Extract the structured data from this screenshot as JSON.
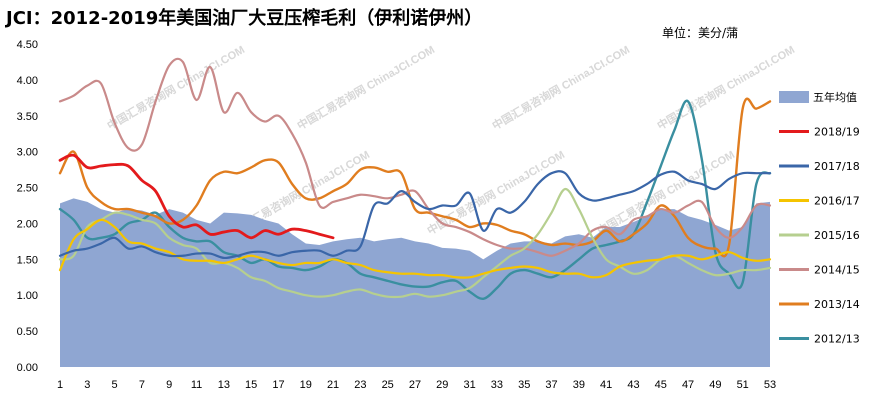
{
  "chart_data": {
    "type": "line",
    "title": "JCI：2012-2019年美国油厂大豆压榨毛利（伊利诺伊州）",
    "unit": "单位：美分/蒲",
    "watermark": "中国汇易咨询网  ChinaJCI.COM",
    "xlabel": "",
    "ylabel": "",
    "xlim": [
      1,
      53
    ],
    "ylim": [
      0,
      4.5
    ],
    "yticks": [
      "0.00",
      "0.50",
      "1.00",
      "1.50",
      "2.00",
      "2.50",
      "3.00",
      "3.50",
      "4.00",
      "4.50"
    ],
    "xticks": [
      "1",
      "3",
      "5",
      "7",
      "9",
      "11",
      "13",
      "15",
      "17",
      "19",
      "21",
      "23",
      "25",
      "27",
      "29",
      "31",
      "33",
      "35",
      "37",
      "39",
      "41",
      "43",
      "45",
      "47",
      "49",
      "51",
      "53"
    ],
    "legend_position": "right",
    "area": {
      "name": "五年均值",
      "color": "#8fa6d2",
      "x": [
        1,
        2,
        3,
        4,
        5,
        6,
        7,
        8,
        9,
        10,
        11,
        12,
        13,
        14,
        15,
        16,
        17,
        18,
        19,
        20,
        21,
        22,
        23,
        24,
        25,
        26,
        27,
        28,
        29,
        30,
        31,
        32,
        33,
        34,
        35,
        36,
        37,
        38,
        39,
        40,
        41,
        42,
        43,
        44,
        45,
        46,
        47,
        48,
        49,
        50,
        51,
        52,
        53
      ],
      "values": [
        2.28,
        2.35,
        2.3,
        2.2,
        2.15,
        2.2,
        2.18,
        2.12,
        2.2,
        2.15,
        2.05,
        2.0,
        2.15,
        2.14,
        2.12,
        2.05,
        2.0,
        1.85,
        1.72,
        1.7,
        1.75,
        1.78,
        1.8,
        1.75,
        1.78,
        1.8,
        1.75,
        1.72,
        1.66,
        1.65,
        1.62,
        1.5,
        1.62,
        1.72,
        1.75,
        1.75,
        1.72,
        1.82,
        1.85,
        1.8,
        1.95,
        1.95,
        2.02,
        2.1,
        2.2,
        2.2,
        2.1,
        2.05,
        1.98,
        1.9,
        1.95,
        2.28,
        2.3
      ]
    },
    "series": [
      {
        "name": "2018/19",
        "color": "#e31a1c",
        "width": 2.8,
        "x": [
          1,
          2,
          3,
          4,
          5,
          6,
          7,
          8,
          9,
          10,
          11,
          12,
          13,
          14,
          15,
          16,
          17,
          18,
          19,
          20,
          21
        ],
        "values": [
          2.88,
          2.95,
          2.78,
          2.8,
          2.82,
          2.8,
          2.6,
          2.45,
          2.1,
          1.95,
          1.98,
          1.85,
          1.88,
          1.9,
          1.8,
          1.9,
          1.85,
          1.92,
          1.9,
          1.85,
          1.8
        ]
      },
      {
        "name": "2017/18",
        "color": "#3a66a8",
        "width": 2.2,
        "x": [
          1,
          2,
          3,
          4,
          5,
          6,
          7,
          8,
          9,
          10,
          11,
          12,
          13,
          14,
          15,
          16,
          17,
          18,
          19,
          20,
          21,
          22,
          23,
          24,
          25,
          26,
          27,
          28,
          29,
          30,
          31,
          32,
          33,
          34,
          35,
          36,
          37,
          38,
          39,
          40,
          41,
          42,
          43,
          44,
          45,
          46,
          47,
          48,
          49,
          50,
          51,
          52,
          53
        ],
        "values": [
          1.55,
          1.62,
          1.65,
          1.72,
          1.8,
          1.65,
          1.68,
          1.6,
          1.55,
          1.55,
          1.58,
          1.58,
          1.52,
          1.55,
          1.6,
          1.6,
          1.55,
          1.6,
          1.62,
          1.62,
          1.55,
          1.62,
          1.68,
          2.25,
          2.28,
          2.45,
          2.3,
          2.2,
          2.25,
          2.25,
          2.42,
          1.9,
          2.2,
          2.15,
          2.3,
          2.55,
          2.7,
          2.7,
          2.42,
          2.32,
          2.35,
          2.4,
          2.45,
          2.55,
          2.68,
          2.72,
          2.6,
          2.55,
          2.48,
          2.62,
          2.7,
          2.7,
          2.7
        ]
      },
      {
        "name": "2016/17",
        "color": "#f5c400",
        "width": 2.2,
        "x": [
          1,
          2,
          3,
          4,
          5,
          6,
          7,
          8,
          9,
          10,
          11,
          12,
          13,
          14,
          15,
          16,
          17,
          18,
          19,
          20,
          21,
          22,
          23,
          24,
          25,
          26,
          27,
          28,
          29,
          30,
          31,
          32,
          33,
          34,
          35,
          36,
          37,
          38,
          39,
          40,
          41,
          42,
          43,
          44,
          45,
          46,
          47,
          48,
          49,
          50,
          51,
          52,
          53
        ],
        "values": [
          1.35,
          1.78,
          1.92,
          2.05,
          1.95,
          1.75,
          1.72,
          1.65,
          1.6,
          1.5,
          1.48,
          1.48,
          1.45,
          1.5,
          1.55,
          1.5,
          1.45,
          1.42,
          1.45,
          1.45,
          1.5,
          1.45,
          1.42,
          1.35,
          1.32,
          1.3,
          1.3,
          1.28,
          1.28,
          1.25,
          1.25,
          1.3,
          1.35,
          1.38,
          1.4,
          1.38,
          1.32,
          1.3,
          1.3,
          1.25,
          1.28,
          1.4,
          1.45,
          1.48,
          1.5,
          1.55,
          1.55,
          1.5,
          1.55,
          1.6,
          1.52,
          1.48,
          1.5
        ]
      },
      {
        "name": "2015/16",
        "color": "#b6cf8f",
        "width": 2.2,
        "x": [
          1,
          2,
          3,
          4,
          5,
          6,
          7,
          8,
          9,
          10,
          11,
          12,
          13,
          14,
          15,
          16,
          17,
          18,
          19,
          20,
          21,
          22,
          23,
          24,
          25,
          26,
          27,
          28,
          29,
          30,
          31,
          32,
          33,
          34,
          35,
          36,
          37,
          38,
          39,
          40,
          41,
          42,
          43,
          44,
          45,
          46,
          47,
          48,
          49,
          50,
          51,
          52,
          53
        ],
        "values": [
          1.5,
          1.55,
          1.95,
          2.05,
          2.15,
          2.12,
          2.05,
          2.0,
          1.8,
          1.7,
          1.65,
          1.45,
          1.45,
          1.38,
          1.25,
          1.2,
          1.1,
          1.05,
          1.0,
          0.98,
          1.0,
          1.05,
          1.08,
          1.02,
          0.98,
          0.98,
          1.02,
          0.98,
          1.0,
          1.05,
          1.1,
          1.25,
          1.4,
          1.55,
          1.65,
          1.85,
          2.15,
          2.48,
          2.2,
          1.8,
          1.5,
          1.4,
          1.3,
          1.35,
          1.5,
          1.55,
          1.45,
          1.35,
          1.28,
          1.3,
          1.35,
          1.35,
          1.38
        ]
      },
      {
        "name": "2014/15",
        "color": "#c98a8a",
        "width": 2.2,
        "x": [
          1,
          2,
          3,
          4,
          5,
          6,
          7,
          8,
          9,
          10,
          11,
          12,
          13,
          14,
          15,
          16,
          17,
          18,
          19,
          20,
          21,
          22,
          23,
          24,
          25,
          26,
          27,
          28,
          29,
          30,
          31,
          32,
          33,
          34,
          35,
          36,
          37,
          38,
          39,
          40,
          41,
          42,
          43,
          44,
          45,
          46,
          47,
          48,
          49,
          50,
          51,
          52,
          53
        ],
        "values": [
          3.7,
          3.78,
          3.92,
          3.95,
          3.4,
          3.05,
          3.1,
          3.7,
          4.2,
          4.25,
          3.72,
          4.18,
          3.55,
          3.82,
          3.55,
          3.42,
          3.5,
          3.25,
          2.85,
          2.25,
          2.3,
          2.35,
          2.4,
          2.38,
          2.35,
          2.4,
          2.45,
          2.2,
          2.0,
          1.95,
          1.88,
          1.78,
          1.7,
          1.65,
          1.65,
          1.6,
          1.55,
          1.62,
          1.72,
          1.9,
          1.95,
          1.85,
          2.05,
          2.1,
          2.2,
          2.15,
          2.25,
          2.3,
          1.95,
          1.8,
          1.95,
          2.25,
          2.25
        ]
      },
      {
        "name": "2013/14",
        "color": "#e07d1f",
        "width": 2.4,
        "x": [
          1,
          2,
          3,
          4,
          5,
          6,
          7,
          8,
          9,
          10,
          11,
          12,
          13,
          14,
          15,
          16,
          17,
          18,
          19,
          20,
          21,
          22,
          23,
          24,
          25,
          26,
          27,
          28,
          29,
          30,
          31,
          32,
          33,
          34,
          35,
          36,
          37,
          38,
          39,
          40,
          41,
          42,
          43,
          44,
          45,
          46,
          47,
          48,
          49,
          50,
          51,
          52,
          53
        ],
        "values": [
          2.7,
          3.0,
          2.5,
          2.3,
          2.2,
          2.2,
          2.15,
          2.1,
          2.0,
          2.05,
          2.25,
          2.6,
          2.72,
          2.7,
          2.78,
          2.88,
          2.85,
          2.55,
          2.35,
          2.35,
          2.45,
          2.55,
          2.75,
          2.78,
          2.72,
          2.7,
          2.2,
          2.15,
          2.1,
          2.05,
          1.95,
          2.0,
          1.98,
          1.9,
          1.85,
          1.75,
          1.7,
          1.72,
          1.7,
          1.75,
          1.9,
          1.75,
          1.85,
          2.0,
          2.25,
          2.1,
          1.8,
          1.68,
          1.65,
          1.7,
          3.6,
          3.6,
          3.7
        ]
      },
      {
        "name": "2012/13",
        "color": "#3a8fa0",
        "width": 2.4,
        "x": [
          1,
          2,
          3,
          4,
          5,
          6,
          7,
          8,
          9,
          10,
          11,
          12,
          13,
          14,
          15,
          16,
          17,
          18,
          19,
          20,
          21,
          22,
          23,
          24,
          25,
          26,
          27,
          28,
          29,
          30,
          31,
          32,
          33,
          34,
          35,
          36,
          37,
          38,
          39,
          40,
          41,
          42,
          43,
          44,
          45,
          46,
          47,
          48,
          49,
          50,
          51,
          52,
          53
        ],
        "values": [
          2.2,
          2.05,
          1.8,
          1.8,
          1.85,
          2.0,
          2.05,
          2.15,
          1.95,
          1.8,
          1.75,
          1.75,
          1.6,
          1.55,
          1.45,
          1.5,
          1.4,
          1.38,
          1.35,
          1.4,
          1.5,
          1.45,
          1.3,
          1.25,
          1.2,
          1.15,
          1.12,
          1.12,
          1.18,
          1.2,
          1.05,
          0.95,
          1.1,
          1.3,
          1.35,
          1.3,
          1.25,
          1.35,
          1.5,
          1.65,
          1.7,
          1.75,
          1.85,
          2.3,
          2.8,
          3.3,
          3.7,
          2.9,
          1.6,
          1.3,
          1.18,
          2.55,
          2.7
        ]
      }
    ]
  }
}
